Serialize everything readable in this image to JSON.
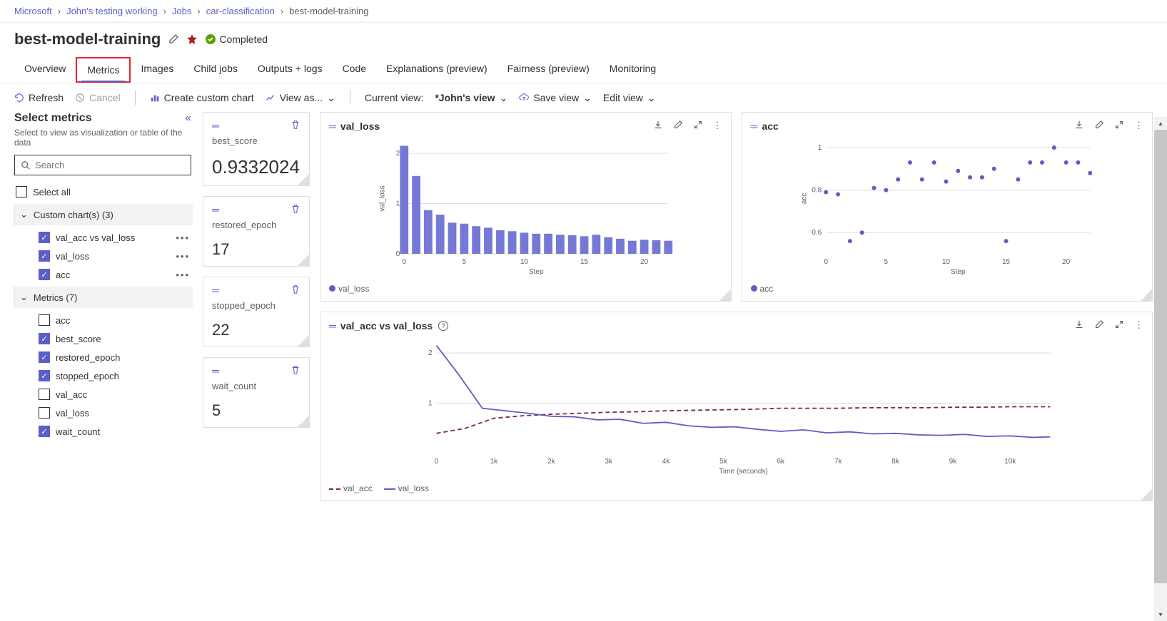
{
  "breadcrumbs": [
    {
      "label": "Microsoft",
      "link": true
    },
    {
      "label": "John's testing working",
      "link": true
    },
    {
      "label": "Jobs",
      "link": true
    },
    {
      "label": "car-classification",
      "link": true
    },
    {
      "label": "best-model-training",
      "link": false
    }
  ],
  "title": "best-model-training",
  "status": "Completed",
  "tabs": [
    "Overview",
    "Metrics",
    "Images",
    "Child jobs",
    "Outputs + logs",
    "Code",
    "Explanations (preview)",
    "Fairness (preview)",
    "Monitoring"
  ],
  "active_tab": "Metrics",
  "toolbar": {
    "refresh": "Refresh",
    "cancel": "Cancel",
    "create_chart": "Create custom chart",
    "view_as": "View as...",
    "current_view_label": "Current view:",
    "current_view_value": "*John's view",
    "save_view": "Save view",
    "edit_view": "Edit view"
  },
  "sidebar": {
    "heading": "Select metrics",
    "hint": "Select to view as visualization or table of the data",
    "search_placeholder": "Search",
    "select_all": "Select all",
    "groups": [
      {
        "label": "Custom chart(s) (3)",
        "items": [
          {
            "label": "val_acc vs val_loss",
            "checked": true,
            "more": true
          },
          {
            "label": "val_loss",
            "checked": true,
            "more": true
          },
          {
            "label": "acc",
            "checked": true,
            "more": true
          }
        ]
      },
      {
        "label": "Metrics (7)",
        "items": [
          {
            "label": "acc",
            "checked": false
          },
          {
            "label": "best_score",
            "checked": true
          },
          {
            "label": "restored_epoch",
            "checked": true
          },
          {
            "label": "stopped_epoch",
            "checked": true
          },
          {
            "label": "val_acc",
            "checked": false
          },
          {
            "label": "val_loss",
            "checked": false
          },
          {
            "label": "wait_count",
            "checked": true
          }
        ]
      }
    ]
  },
  "scalars": [
    {
      "label": "best_score",
      "value": "0.9332024",
      "big": true
    },
    {
      "label": "restored_epoch",
      "value": "17"
    },
    {
      "label": "stopped_epoch",
      "value": "22"
    },
    {
      "label": "wait_count",
      "value": "5"
    }
  ],
  "colors": {
    "primary": "#5b5fc7",
    "primary_fill": "#7579d6",
    "accent_dark": "#7d2a3a",
    "grid": "#e1dfdd",
    "axis": "#605e5c"
  },
  "chart_val_loss": {
    "title": "val_loss",
    "type": "bar",
    "xlabel": "Step",
    "ylabel": "val_loss",
    "x_ticks": [
      0,
      5,
      10,
      15,
      20
    ],
    "y_ticks": [
      0,
      1,
      2
    ],
    "xlim": [
      0,
      22
    ],
    "ylim": [
      0,
      2.2
    ],
    "bar_color": "#7579d6",
    "values": [
      2.15,
      1.55,
      0.87,
      0.78,
      0.62,
      0.6,
      0.55,
      0.52,
      0.47,
      0.45,
      0.42,
      0.4,
      0.4,
      0.38,
      0.37,
      0.35,
      0.38,
      0.33,
      0.3,
      0.26,
      0.28,
      0.27,
      0.26
    ],
    "legend": "val_loss"
  },
  "chart_acc": {
    "title": "acc",
    "type": "scatter",
    "xlabel": "Step",
    "ylabel": "acc",
    "x_ticks": [
      0,
      5,
      10,
      15,
      20
    ],
    "y_ticks": [
      0.6,
      0.8,
      1
    ],
    "xlim": [
      0,
      22
    ],
    "ylim": [
      0.5,
      1.02
    ],
    "marker_color": "#5b5fc7",
    "points": [
      [
        0,
        0.79
      ],
      [
        1,
        0.78
      ],
      [
        2,
        0.56
      ],
      [
        3,
        0.6
      ],
      [
        4,
        0.81
      ],
      [
        5,
        0.8
      ],
      [
        6,
        0.85
      ],
      [
        7,
        0.93
      ],
      [
        8,
        0.85
      ],
      [
        9,
        0.93
      ],
      [
        10,
        0.84
      ],
      [
        11,
        0.89
      ],
      [
        12,
        0.86
      ],
      [
        13,
        0.86
      ],
      [
        14,
        0.9
      ],
      [
        15,
        0.56
      ],
      [
        16,
        0.85
      ],
      [
        17,
        0.93
      ],
      [
        18,
        0.93
      ],
      [
        19,
        1.0
      ],
      [
        20,
        0.93
      ],
      [
        21,
        0.93
      ],
      [
        22,
        0.88
      ]
    ],
    "legend": "acc"
  },
  "chart_dual": {
    "title": "val_acc vs val_loss",
    "type": "line",
    "xlabel": "Time (seconds)",
    "x_ticks": [
      0,
      1000,
      2000,
      3000,
      4000,
      5000,
      6000,
      7000,
      8000,
      9000,
      10000
    ],
    "x_tick_labels": [
      "0",
      "1k",
      "2k",
      "3k",
      "4k",
      "5k",
      "6k",
      "7k",
      "8k",
      "9k",
      "10k"
    ],
    "y_ticks": [
      1,
      2
    ],
    "xlim": [
      0,
      10700
    ],
    "ylim": [
      0,
      2.2
    ],
    "series": [
      {
        "name": "val_acc",
        "style": "dash",
        "color": "#7d2a3a",
        "points": [
          [
            0,
            0.4
          ],
          [
            500,
            0.5
          ],
          [
            1000,
            0.7
          ],
          [
            1500,
            0.75
          ],
          [
            2000,
            0.78
          ],
          [
            2500,
            0.8
          ],
          [
            3000,
            0.82
          ],
          [
            3500,
            0.83
          ],
          [
            4000,
            0.85
          ],
          [
            4500,
            0.86
          ],
          [
            5000,
            0.87
          ],
          [
            5500,
            0.88
          ],
          [
            6000,
            0.9
          ],
          [
            6500,
            0.9
          ],
          [
            7000,
            0.9
          ],
          [
            7500,
            0.91
          ],
          [
            8000,
            0.91
          ],
          [
            8500,
            0.91
          ],
          [
            9000,
            0.92
          ],
          [
            9500,
            0.92
          ],
          [
            10000,
            0.93
          ],
          [
            10700,
            0.93
          ]
        ]
      },
      {
        "name": "val_loss",
        "style": "solid",
        "color": "#5b5fc7",
        "points": [
          [
            0,
            2.15
          ],
          [
            400,
            1.55
          ],
          [
            800,
            0.9
          ],
          [
            1200,
            0.85
          ],
          [
            1600,
            0.8
          ],
          [
            2000,
            0.74
          ],
          [
            2400,
            0.73
          ],
          [
            2800,
            0.67
          ],
          [
            3200,
            0.68
          ],
          [
            3600,
            0.6
          ],
          [
            4000,
            0.62
          ],
          [
            4400,
            0.55
          ],
          [
            4800,
            0.52
          ],
          [
            5200,
            0.53
          ],
          [
            5600,
            0.48
          ],
          [
            6000,
            0.44
          ],
          [
            6400,
            0.47
          ],
          [
            6800,
            0.41
          ],
          [
            7200,
            0.43
          ],
          [
            7600,
            0.39
          ],
          [
            8000,
            0.4
          ],
          [
            8400,
            0.37
          ],
          [
            8800,
            0.36
          ],
          [
            9200,
            0.38
          ],
          [
            9600,
            0.34
          ],
          [
            10000,
            0.35
          ],
          [
            10400,
            0.32
          ],
          [
            10700,
            0.33
          ]
        ]
      }
    ]
  }
}
